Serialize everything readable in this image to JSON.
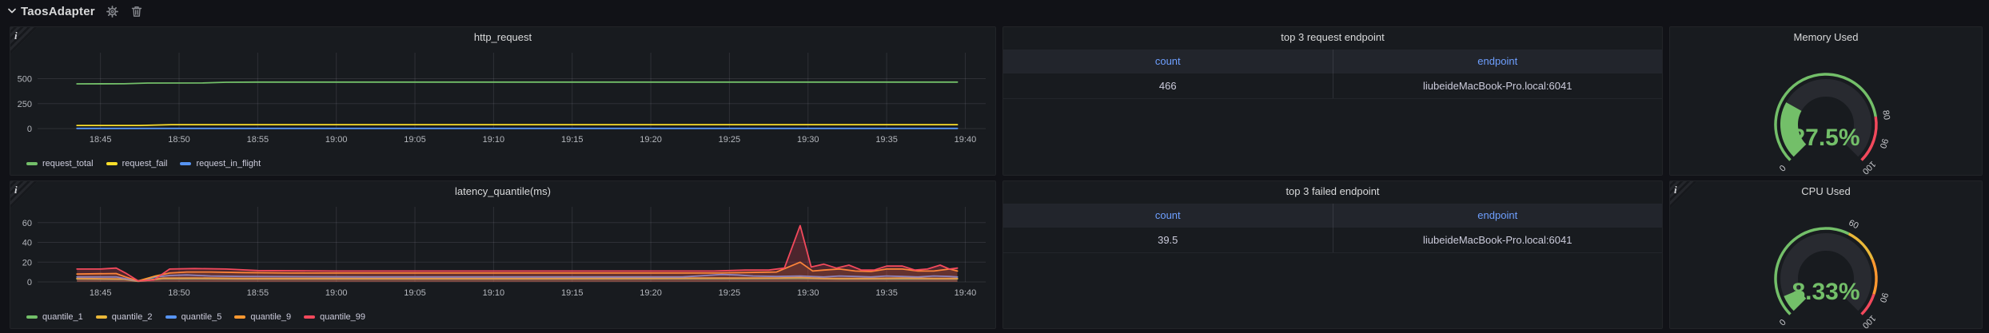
{
  "header": {
    "title": "TaosAdapter"
  },
  "icons": {
    "info": "i",
    "chevron": "chevron-down",
    "gear": "gear",
    "trash": "trash"
  },
  "colors": {
    "page_bg": "#111217",
    "panel_bg": "#181b1f",
    "link_blue": "#6e9fff",
    "value_green": "#73BF69",
    "grid": "rgba(204,204,220,0.12)",
    "axis_text": "#b4b7bd",
    "green": "#73BF69",
    "yellow": "#FADE2A",
    "gold": "#EAB839",
    "blue": "#5794F2",
    "orange": "#FF9830",
    "red": "#F2495C"
  },
  "time_axis_labels": [
    "18:45",
    "18:50",
    "18:55",
    "19:00",
    "19:05",
    "19:10",
    "19:15",
    "19:20",
    "19:25",
    "19:30",
    "19:35",
    "19:40"
  ],
  "chart_data": [
    {
      "id": "http_request",
      "type": "line",
      "title": "http_request",
      "x_unit": "minutes since 18:42",
      "xlim": [
        -1,
        59.3
      ],
      "ylim": [
        0,
        760
      ],
      "grid": true,
      "legend_position": "bottom",
      "yticks": [
        0,
        250,
        500
      ],
      "xticks": [
        {
          "m": 3,
          "label": "18:45"
        },
        {
          "m": 8,
          "label": "18:50"
        },
        {
          "m": 13,
          "label": "18:55"
        },
        {
          "m": 18,
          "label": "19:00"
        },
        {
          "m": 23,
          "label": "19:05"
        },
        {
          "m": 28,
          "label": "19:10"
        },
        {
          "m": 33,
          "label": "19:15"
        },
        {
          "m": 38,
          "label": "19:20"
        },
        {
          "m": 43,
          "label": "19:25"
        },
        {
          "m": 48,
          "label": "19:30"
        },
        {
          "m": 53,
          "label": "19:35"
        },
        {
          "m": 58,
          "label": "19:40"
        }
      ],
      "series": [
        {
          "name": "request_total",
          "color": "#73BF69",
          "fill_opacity": 0,
          "points": [
            [
              1.5,
              448
            ],
            [
              4.5,
              449
            ],
            [
              6,
              456
            ],
            [
              9.5,
              457
            ],
            [
              11,
              464
            ],
            [
              13,
              466
            ],
            [
              57.5,
              466
            ]
          ]
        },
        {
          "name": "request_fail",
          "color": "#FADE2A",
          "fill_opacity": 0,
          "points": [
            [
              1.5,
              31
            ],
            [
              5.5,
              31
            ],
            [
              7.5,
              39
            ],
            [
              30,
              39
            ],
            [
              57.5,
              39.5
            ]
          ]
        },
        {
          "name": "request_in_flight",
          "color": "#5794F2",
          "fill_opacity": 0,
          "points": [
            [
              1.5,
              2
            ],
            [
              57.5,
              2
            ]
          ]
        }
      ]
    },
    {
      "id": "latency_quantile",
      "type": "line",
      "title": "latency_quantile(ms)",
      "x_unit": "minutes since 18:42",
      "xlim": [
        -1,
        59.3
      ],
      "ylim": [
        0,
        76
      ],
      "grid": true,
      "legend_position": "bottom",
      "yticks": [
        0,
        20,
        40,
        60
      ],
      "xticks": [
        {
          "m": 3,
          "label": "18:45"
        },
        {
          "m": 8,
          "label": "18:50"
        },
        {
          "m": 13,
          "label": "18:55"
        },
        {
          "m": 18,
          "label": "19:00"
        },
        {
          "m": 23,
          "label": "19:05"
        },
        {
          "m": 28,
          "label": "19:10"
        },
        {
          "m": 33,
          "label": "19:15"
        },
        {
          "m": 38,
          "label": "19:20"
        },
        {
          "m": 43,
          "label": "19:25"
        },
        {
          "m": 48,
          "label": "19:30"
        },
        {
          "m": 53,
          "label": "19:35"
        },
        {
          "m": 58,
          "label": "19:40"
        }
      ],
      "series": [
        {
          "name": "quantile_1",
          "color": "#73BF69",
          "fill_opacity": 0.08,
          "points": [
            [
              1.5,
              3
            ],
            [
              4.5,
              2.5
            ],
            [
              5.4,
              0.6
            ],
            [
              7,
              3.2
            ],
            [
              12,
              3
            ],
            [
              30,
              3
            ],
            [
              42,
              3.2
            ],
            [
              47.5,
              3.5
            ],
            [
              50,
              3
            ],
            [
              57.5,
              3
            ]
          ]
        },
        {
          "name": "quantile_2",
          "color": "#EAB839",
          "fill_opacity": 0.08,
          "points": [
            [
              1.5,
              3.5
            ],
            [
              4.5,
              3
            ],
            [
              5.4,
              0.8
            ],
            [
              7,
              3.8
            ],
            [
              9,
              4
            ],
            [
              12,
              3.5
            ],
            [
              30,
              3.5
            ],
            [
              42,
              4
            ],
            [
              46,
              4
            ],
            [
              47.5,
              4.5
            ],
            [
              49,
              3.5
            ],
            [
              52,
              3.5
            ],
            [
              54,
              4
            ],
            [
              56,
              3.5
            ],
            [
              57.5,
              3.5
            ]
          ]
        },
        {
          "name": "quantile_5",
          "color": "#5794F2",
          "fill_opacity": 0.08,
          "points": [
            [
              1.5,
              5
            ],
            [
              4,
              5
            ],
            [
              5.4,
              1
            ],
            [
              6.5,
              5
            ],
            [
              7.4,
              6.5
            ],
            [
              8.5,
              7
            ],
            [
              10,
              6
            ],
            [
              12,
              5.5
            ],
            [
              20,
              5
            ],
            [
              30,
              5
            ],
            [
              40,
              5
            ],
            [
              41.5,
              6.5
            ],
            [
              42.5,
              7.5
            ],
            [
              43.5,
              7
            ],
            [
              44.5,
              6
            ],
            [
              46,
              5.5
            ],
            [
              47.5,
              6
            ],
            [
              49,
              5
            ],
            [
              50,
              6
            ],
            [
              51,
              5.5
            ],
            [
              52,
              5
            ],
            [
              53,
              6
            ],
            [
              54,
              5.5
            ],
            [
              55,
              5
            ],
            [
              56,
              6
            ],
            [
              57,
              5.5
            ],
            [
              57.5,
              5
            ]
          ]
        },
        {
          "name": "quantile_9",
          "color": "#FF9830",
          "fill_opacity": 0.14,
          "points": [
            [
              1.5,
              8
            ],
            [
              4,
              8.5
            ],
            [
              4.6,
              5
            ],
            [
              5.4,
              1
            ],
            [
              6.5,
              6
            ],
            [
              7.4,
              9
            ],
            [
              8.5,
              10
            ],
            [
              10,
              10
            ],
            [
              12,
              9.5
            ],
            [
              15,
              9
            ],
            [
              25,
              9
            ],
            [
              35,
              9
            ],
            [
              42,
              9
            ],
            [
              44,
              9.5
            ],
            [
              46,
              10
            ],
            [
              47.5,
              20
            ],
            [
              48.3,
              11
            ],
            [
              49,
              12
            ],
            [
              50,
              13
            ],
            [
              51,
              11
            ],
            [
              52,
              10.5
            ],
            [
              53,
              13
            ],
            [
              54,
              13
            ],
            [
              55,
              11
            ],
            [
              56,
              11
            ],
            [
              57,
              13
            ],
            [
              57.5,
              11
            ]
          ]
        },
        {
          "name": "quantile_99",
          "color": "#F2495C",
          "fill_opacity": 0.24,
          "points": [
            [
              1.5,
              13
            ],
            [
              3,
              13
            ],
            [
              4,
              14
            ],
            [
              4.6,
              9
            ],
            [
              5.4,
              1
            ],
            [
              6.4,
              2
            ],
            [
              7.4,
              13
            ],
            [
              9,
              13.5
            ],
            [
              11,
              13
            ],
            [
              13,
              11.5
            ],
            [
              18,
              11
            ],
            [
              25,
              11
            ],
            [
              32,
              11
            ],
            [
              38,
              11
            ],
            [
              42,
              11
            ],
            [
              44,
              12
            ],
            [
              45.5,
              12
            ],
            [
              46.5,
              14
            ],
            [
              47.5,
              57
            ],
            [
              48.2,
              15
            ],
            [
              49,
              18
            ],
            [
              49.8,
              14
            ],
            [
              50.6,
              17
            ],
            [
              51.4,
              12
            ],
            [
              52.2,
              12
            ],
            [
              53,
              16
            ],
            [
              54,
              16
            ],
            [
              54.8,
              12
            ],
            [
              55.6,
              13
            ],
            [
              56.4,
              17
            ],
            [
              57,
              13
            ],
            [
              57.5,
              14
            ]
          ]
        }
      ]
    },
    {
      "id": "memory_gauge",
      "type": "gauge",
      "title": "Memory Used",
      "value": 27.5,
      "display": "27.5%",
      "min": 0,
      "max": 100,
      "value_color": "#73BF69",
      "tick_labels": [
        0,
        80,
        90,
        100
      ],
      "segments": [
        {
          "from": 0,
          "to": 80,
          "color": "#73BF69"
        },
        {
          "from": 80,
          "to": 100,
          "color": "#F2495C"
        }
      ]
    },
    {
      "id": "cpu_gauge",
      "type": "gauge",
      "title": "CPU Used",
      "value": 8.33,
      "display": "8.33%",
      "min": 0,
      "max": 100,
      "value_color": "#73BF69",
      "tick_labels": [
        0,
        60,
        90,
        100
      ],
      "segments": [
        {
          "from": 0,
          "to": 60,
          "color": "#73BF69"
        },
        {
          "from": 60,
          "to": 75,
          "color": "#EAB839"
        },
        {
          "from": 75,
          "to": 90,
          "color": "#FF9830"
        },
        {
          "from": 90,
          "to": 100,
          "color": "#F2495C"
        }
      ]
    },
    {
      "id": "request_table",
      "type": "table",
      "title": "top 3 request endpoint",
      "columns": [
        "count",
        "endpoint"
      ],
      "rows": [
        [
          "466",
          "liubeideMacBook-Pro.local:6041"
        ]
      ]
    },
    {
      "id": "failed_table",
      "type": "table",
      "title": "top 3 failed endpoint",
      "columns": [
        "count",
        "endpoint"
      ],
      "rows": [
        [
          "39.5",
          "liubeideMacBook-Pro.local:6041"
        ]
      ]
    }
  ]
}
